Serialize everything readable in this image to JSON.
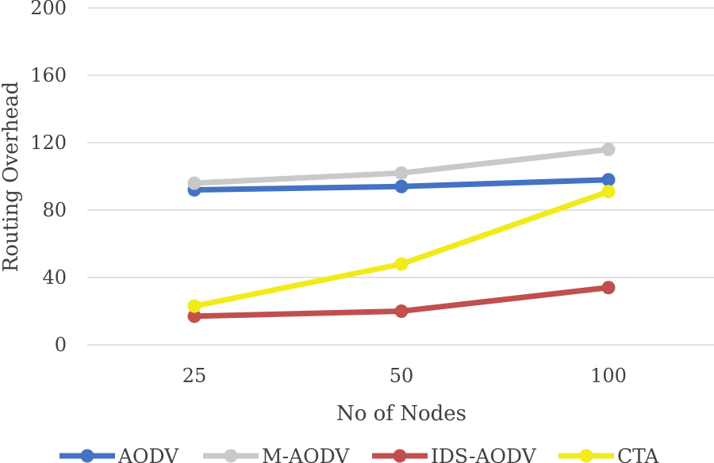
{
  "chart_data": {
    "type": "line",
    "title": "",
    "xlabel": "No of Nodes",
    "ylabel": "Routing Overhead",
    "categories": [
      "25",
      "50",
      "100"
    ],
    "ylim": [
      0,
      200
    ],
    "yticks": [
      0,
      40,
      80,
      120,
      160,
      200
    ],
    "grid": true,
    "legend_position": "bottom",
    "series": [
      {
        "name": "AODV",
        "color": "#4472C4",
        "values": [
          92,
          94,
          98
        ]
      },
      {
        "name": "M-AODV",
        "color": "#C9C9C9",
        "values": [
          96,
          102,
          116
        ]
      },
      {
        "name": "IDS-AODV",
        "color": "#C0504D",
        "values": [
          17,
          20,
          34
        ]
      },
      {
        "name": "CTA",
        "color": "#F2EB1A",
        "values": [
          23,
          48,
          91
        ]
      }
    ]
  }
}
